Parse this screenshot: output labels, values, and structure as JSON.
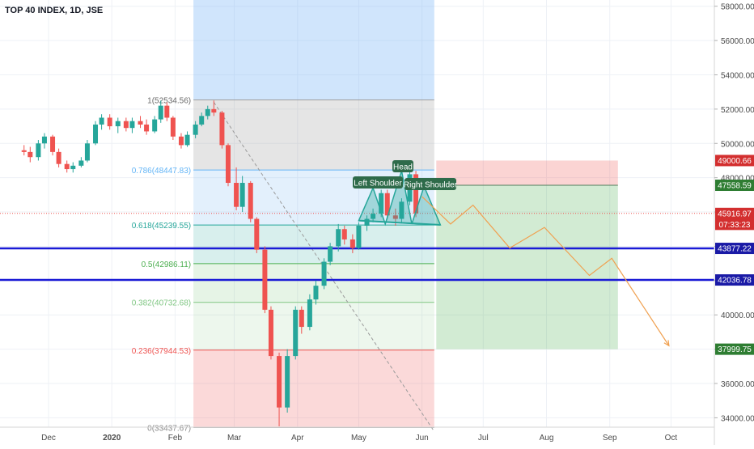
{
  "header": {
    "title": "TOP 40 INDEX, 1D, JSE"
  },
  "colors": {
    "up": "#26a69a",
    "down": "#ef5350",
    "axis_text": "#4a4a4a",
    "price_blue": "#1a1aa6",
    "price_green": "#2e7d32",
    "price_red": "#d32f2f"
  },
  "chart_data": {
    "type": "candlestick",
    "symbol": "TOP 40 INDEX",
    "interval": "1D",
    "exchange": "JSE",
    "y_ticks": [
      34000,
      36000,
      38000,
      40000,
      42000,
      44000,
      46000,
      48000,
      50000,
      52000,
      54000,
      56000,
      58000
    ],
    "y_tick_labels": [
      "34000.00",
      "36000.00",
      "38000.00",
      "40000.00",
      "42000.00",
      "44000.00",
      "46000.00",
      "48000.00",
      "50000.00",
      "52000.00",
      "54000.00",
      "56000.00",
      "58000.00"
    ],
    "x_ticks": [
      "2019-12-01",
      "2020-01-01",
      "2020-02-01",
      "2020-03-01",
      "2020-04-01",
      "2020-05-01",
      "2020-06-01",
      "2020-07-01",
      "2020-08-01",
      "2020-09-01",
      "2020-10-01"
    ],
    "x_tick_labels": [
      "Dec",
      "2020",
      "Feb",
      "Mar",
      "Apr",
      "May",
      "Jun",
      "Jul",
      "Aug",
      "Sep",
      "Oct"
    ],
    "fib_retracement": [
      {
        "label": "1(52534.56)",
        "value": 52534.56
      },
      {
        "label": "0.786(48447.83)",
        "value": 48447.83
      },
      {
        "label": "0.618(45239.55)",
        "value": 45239.55
      },
      {
        "label": "0.5(42986.11)",
        "value": 42986.11
      },
      {
        "label": "0.382(40732.68)",
        "value": 40732.68
      },
      {
        "label": "0.236(37944.53)",
        "value": 37944.53
      },
      {
        "label": "0(33437.67)",
        "value": 33437.67
      }
    ],
    "horizontal_lines": [
      43877.22,
      42036.78
    ],
    "price_labels": [
      {
        "value": 49000.66,
        "text": "49000.66",
        "kind": "red"
      },
      {
        "value": 47558.59,
        "text": "47558.59",
        "kind": "green"
      },
      {
        "value": 45916.97,
        "text": "45916.97",
        "kind": "red"
      },
      {
        "value": 45280,
        "text": "07:33:23",
        "kind": "red"
      },
      {
        "value": 43877.22,
        "text": "43877.22",
        "kind": "blue"
      },
      {
        "value": 42036.78,
        "text": "42036.78",
        "kind": "blue"
      },
      {
        "value": 37999.75,
        "text": "37999.75",
        "kind": "green"
      }
    ],
    "position": {
      "entry": 47558.59,
      "stop": 49000.66,
      "target": 37999.75,
      "start": "2020-06-08",
      "end": "2020-09-05"
    },
    "pattern_labels": [
      "Left Shoulder",
      "Head",
      "Right Shoulder"
    ],
    "projection_path": [
      [
        "2020-06-01",
        46900
      ],
      [
        "2020-06-15",
        45300
      ],
      [
        "2020-06-26",
        46400
      ],
      [
        "2020-07-14",
        43900
      ],
      [
        "2020-07-31",
        45100
      ],
      [
        "2020-08-22",
        42300
      ],
      [
        "2020-09-02",
        43300
      ],
      [
        "2020-09-30",
        38200
      ]
    ],
    "candles": [
      [
        "2019-11-19",
        49600,
        49900,
        49300,
        49500
      ],
      [
        "2019-11-22",
        49500,
        49800,
        48900,
        49200
      ],
      [
        "2019-11-26",
        49200,
        50200,
        49000,
        50000
      ],
      [
        "2019-11-29",
        50000,
        50600,
        49700,
        50400
      ],
      [
        "2019-12-03",
        50400,
        50500,
        49300,
        49500
      ],
      [
        "2019-12-06",
        49500,
        49700,
        48600,
        48800
      ],
      [
        "2019-12-10",
        48800,
        49000,
        48300,
        48500
      ],
      [
        "2019-12-13",
        48500,
        48900,
        48300,
        48700
      ],
      [
        "2019-12-17",
        48700,
        49200,
        48600,
        49000
      ],
      [
        "2019-12-20",
        49000,
        50200,
        48900,
        50000
      ],
      [
        "2019-12-24",
        50000,
        51300,
        49900,
        51100
      ],
      [
        "2019-12-27",
        51100,
        51700,
        50800,
        51500
      ],
      [
        "2019-12-31",
        51500,
        51700,
        50800,
        51000
      ],
      [
        "2020-01-04",
        51000,
        51500,
        50600,
        51300
      ],
      [
        "2020-01-08",
        51300,
        51500,
        50700,
        50900
      ],
      [
        "2020-01-11",
        50900,
        51500,
        50600,
        51300
      ],
      [
        "2020-01-15",
        51300,
        51600,
        50900,
        51100
      ],
      [
        "2020-01-18",
        51100,
        51400,
        50500,
        50700
      ],
      [
        "2020-01-22",
        50700,
        51600,
        50600,
        51400
      ],
      [
        "2020-01-25",
        51400,
        52500,
        51200,
        52200
      ],
      [
        "2020-01-28",
        52200,
        52400,
        51300,
        51500
      ],
      [
        "2020-01-31",
        51500,
        51600,
        50200,
        50400
      ],
      [
        "2020-02-04",
        50400,
        50600,
        49700,
        49900
      ],
      [
        "2020-02-07",
        49900,
        50700,
        49800,
        50500
      ],
      [
        "2020-02-11",
        50500,
        51300,
        50300,
        51100
      ],
      [
        "2020-02-14",
        51100,
        51800,
        51000,
        51600
      ],
      [
        "2020-02-17",
        51600,
        52200,
        51400,
        52000
      ],
      [
        "2020-02-20",
        52000,
        52500,
        51600,
        51800
      ],
      [
        "2020-02-24",
        51800,
        51900,
        49700,
        49900
      ],
      [
        "2020-02-27",
        49900,
        50000,
        47500,
        47700
      ],
      [
        "2020-03-02",
        47700,
        48600,
        46100,
        46300
      ],
      [
        "2020-03-05",
        46300,
        48100,
        46000,
        47700
      ],
      [
        "2020-03-09",
        47700,
        47800,
        45400,
        45600
      ],
      [
        "2020-03-12",
        45600,
        45700,
        43600,
        43800
      ],
      [
        "2020-03-16",
        43800,
        44000,
        40100,
        40300
      ],
      [
        "2020-03-19",
        40300,
        40500,
        37400,
        37600
      ],
      [
        "2020-03-23",
        37600,
        37800,
        33500,
        34600
      ],
      [
        "2020-03-27",
        34600,
        38000,
        34300,
        37600
      ],
      [
        "2020-03-31",
        37600,
        40500,
        37400,
        40300
      ],
      [
        "2020-04-03",
        40300,
        40500,
        38900,
        39300
      ],
      [
        "2020-04-07",
        39300,
        41200,
        39100,
        40900
      ],
      [
        "2020-04-10",
        40900,
        42000,
        40600,
        41700
      ],
      [
        "2020-04-14",
        41700,
        43300,
        41500,
        43100
      ],
      [
        "2020-04-17",
        43100,
        44200,
        42900,
        44000
      ],
      [
        "2020-04-21",
        44000,
        45300,
        43700,
        45000
      ],
      [
        "2020-04-24",
        45000,
        45200,
        44100,
        44400
      ],
      [
        "2020-04-28",
        44400,
        44700,
        43600,
        43900
      ],
      [
        "2020-05-01",
        43900,
        45400,
        43800,
        45200
      ],
      [
        "2020-05-05",
        45200,
        45800,
        44900,
        45600
      ],
      [
        "2020-05-08",
        45600,
        46200,
        45400,
        45900
      ],
      [
        "2020-05-12",
        45900,
        47300,
        45700,
        47100
      ],
      [
        "2020-05-15",
        47100,
        47300,
        45600,
        45800
      ],
      [
        "2020-05-19",
        45800,
        46200,
        45200,
        45600
      ],
      [
        "2020-05-22",
        45600,
        46800,
        45400,
        46600
      ],
      [
        "2020-05-26",
        46600,
        48500,
        46400,
        48200
      ],
      [
        "2020-05-29",
        48200,
        48400,
        45700,
        45917
      ]
    ]
  }
}
